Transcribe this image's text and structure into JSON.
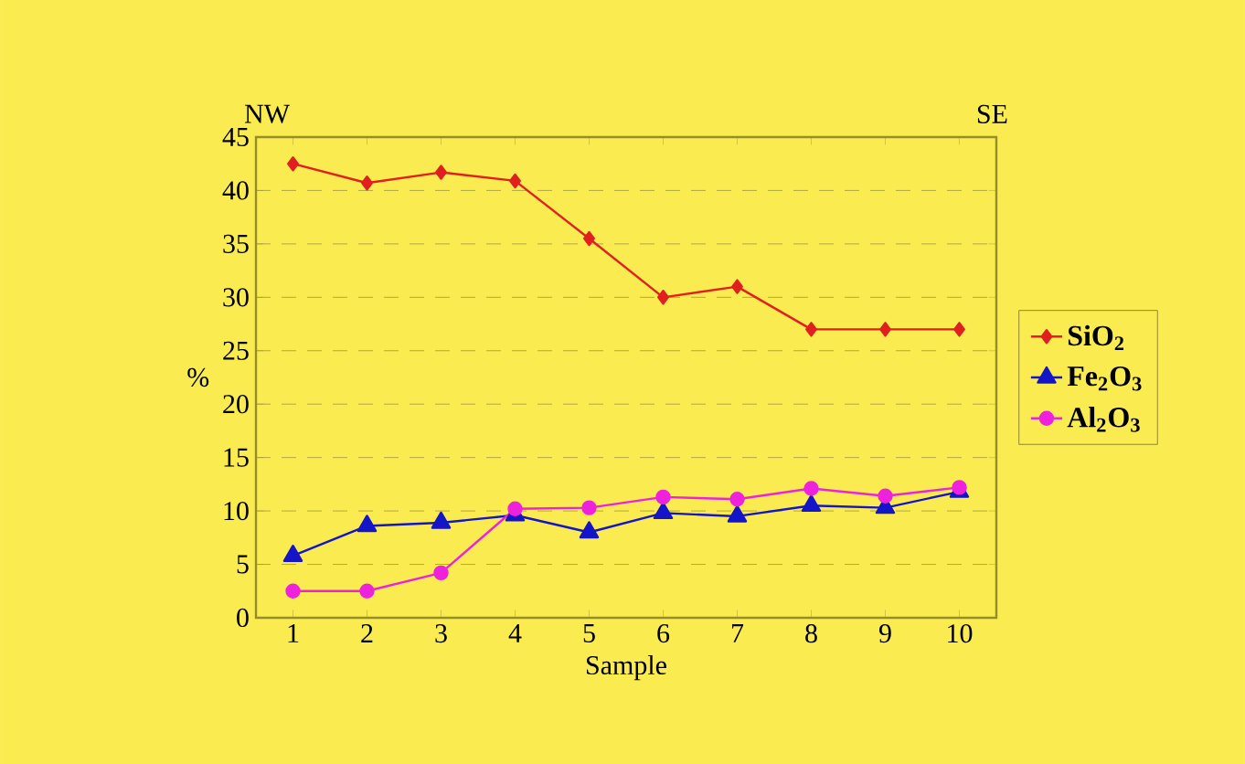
{
  "chart_data": {
    "type": "line",
    "xlabel": "Sample",
    "ylabel": "%",
    "annotations": [
      "NW",
      "SE"
    ],
    "categories": [
      "1",
      "2",
      "3",
      "4",
      "5",
      "6",
      "7",
      "8",
      "9",
      "10"
    ],
    "series": [
      {
        "name": "SiO$_{2}$",
        "color": "#e02020",
        "marker": "diamond",
        "values": [
          42.5,
          40.7,
          41.7,
          40.9,
          35.5,
          30,
          31,
          27,
          27,
          27
        ]
      },
      {
        "name": "Fe$_{2}$O$_{3}$",
        "color": "#1414c8",
        "marker": "triangle",
        "values": [
          5.8,
          8.6,
          8.9,
          9.6,
          8,
          9.8,
          9.5,
          10.5,
          10.3,
          11.8
        ]
      },
      {
        "name": "Al$_{2}$O$_{3}$",
        "color": "#ee22dd",
        "marker": "circle",
        "values": [
          2.5,
          2.5,
          4.2,
          10.2,
          10.3,
          11.3,
          11.1,
          12.1,
          11.4,
          12.2
        ]
      }
    ],
    "ylim": [
      0,
      45
    ],
    "yticks": [
      0,
      5,
      10,
      15,
      20,
      25,
      30,
      35,
      40,
      45
    ],
    "grid": "y",
    "legend": "right"
  }
}
